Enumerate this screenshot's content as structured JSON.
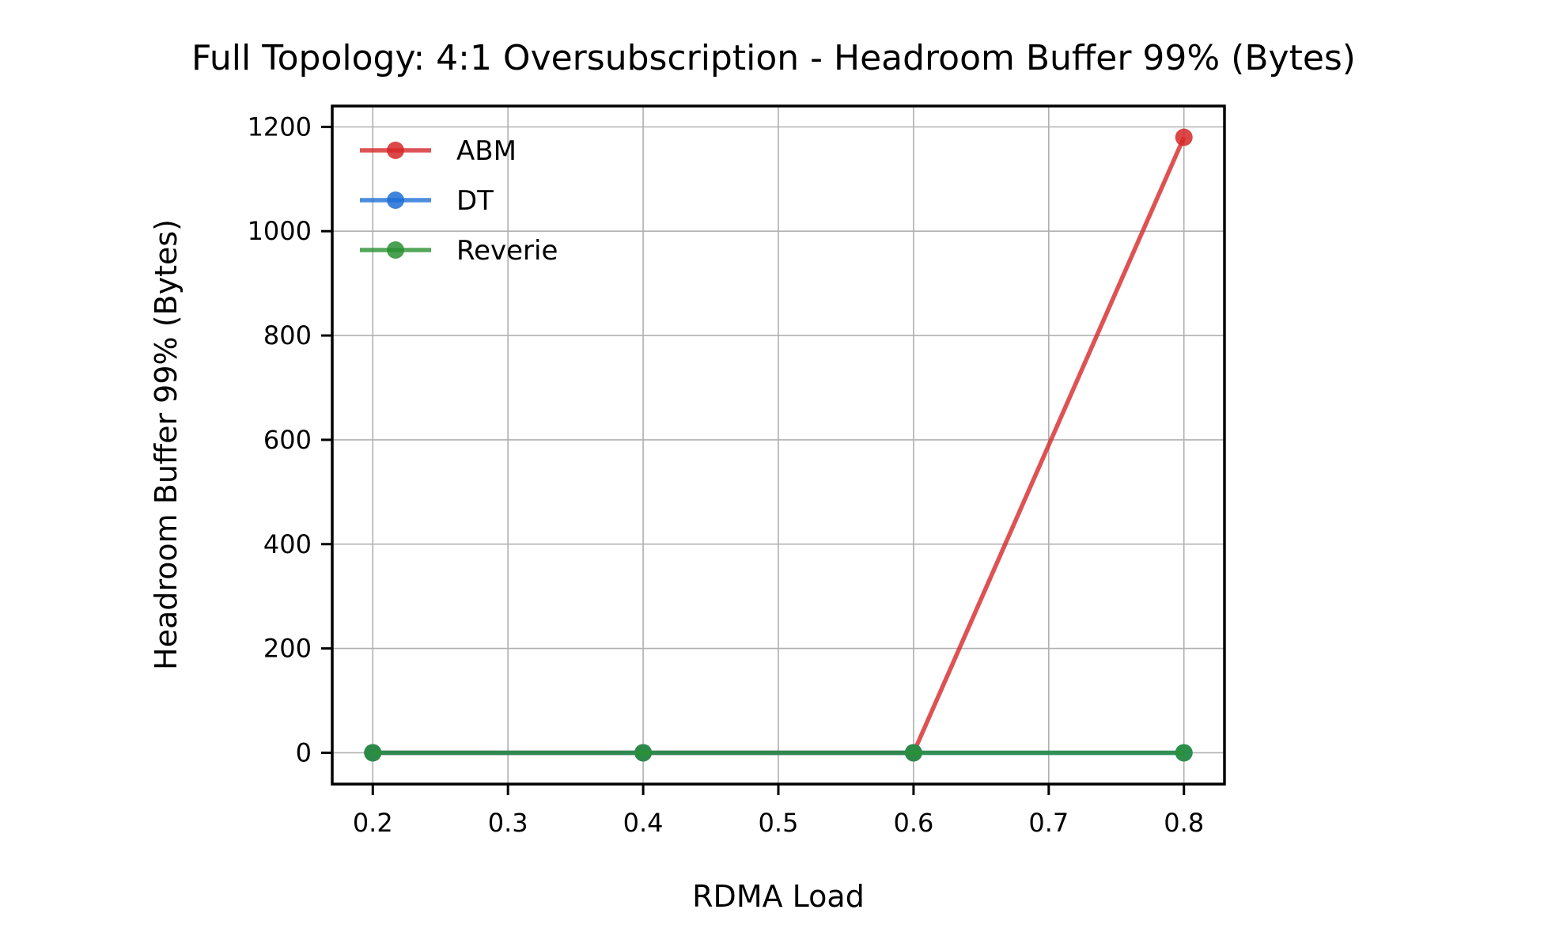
{
  "chart_data": {
    "type": "line",
    "title": "Full Topology: 4:1 Oversubscription - Headroom Buffer 99% (Bytes)",
    "xlabel": "RDMA Load",
    "ylabel": "Headroom Buffer 99% (Bytes)",
    "x": [
      0.2,
      0.4,
      0.6,
      0.8
    ],
    "xlim": [
      0.17,
      0.83
    ],
    "ylim": [
      -60,
      1240
    ],
    "xticks": [
      0.2,
      0.3,
      0.4,
      0.5,
      0.6,
      0.7,
      0.8
    ],
    "xtick_labels": [
      "0.2",
      "0.3",
      "0.4",
      "0.5",
      "0.6",
      "0.7",
      "0.8"
    ],
    "yticks": [
      0,
      200,
      400,
      600,
      800,
      1000,
      1200
    ],
    "ytick_labels": [
      "0",
      "200",
      "400",
      "600",
      "800",
      "1000",
      "1200"
    ],
    "grid": true,
    "legend_position": "top-left",
    "series": [
      {
        "name": "ABM",
        "values": [
          0,
          0,
          0,
          1180
        ],
        "color": "#d62728"
      },
      {
        "name": "DT",
        "values": [
          0,
          0,
          0,
          0
        ],
        "color": "#1f6fd6"
      },
      {
        "name": "Reverie",
        "values": [
          0,
          0,
          0,
          0
        ],
        "color": "#2a9132"
      }
    ]
  }
}
